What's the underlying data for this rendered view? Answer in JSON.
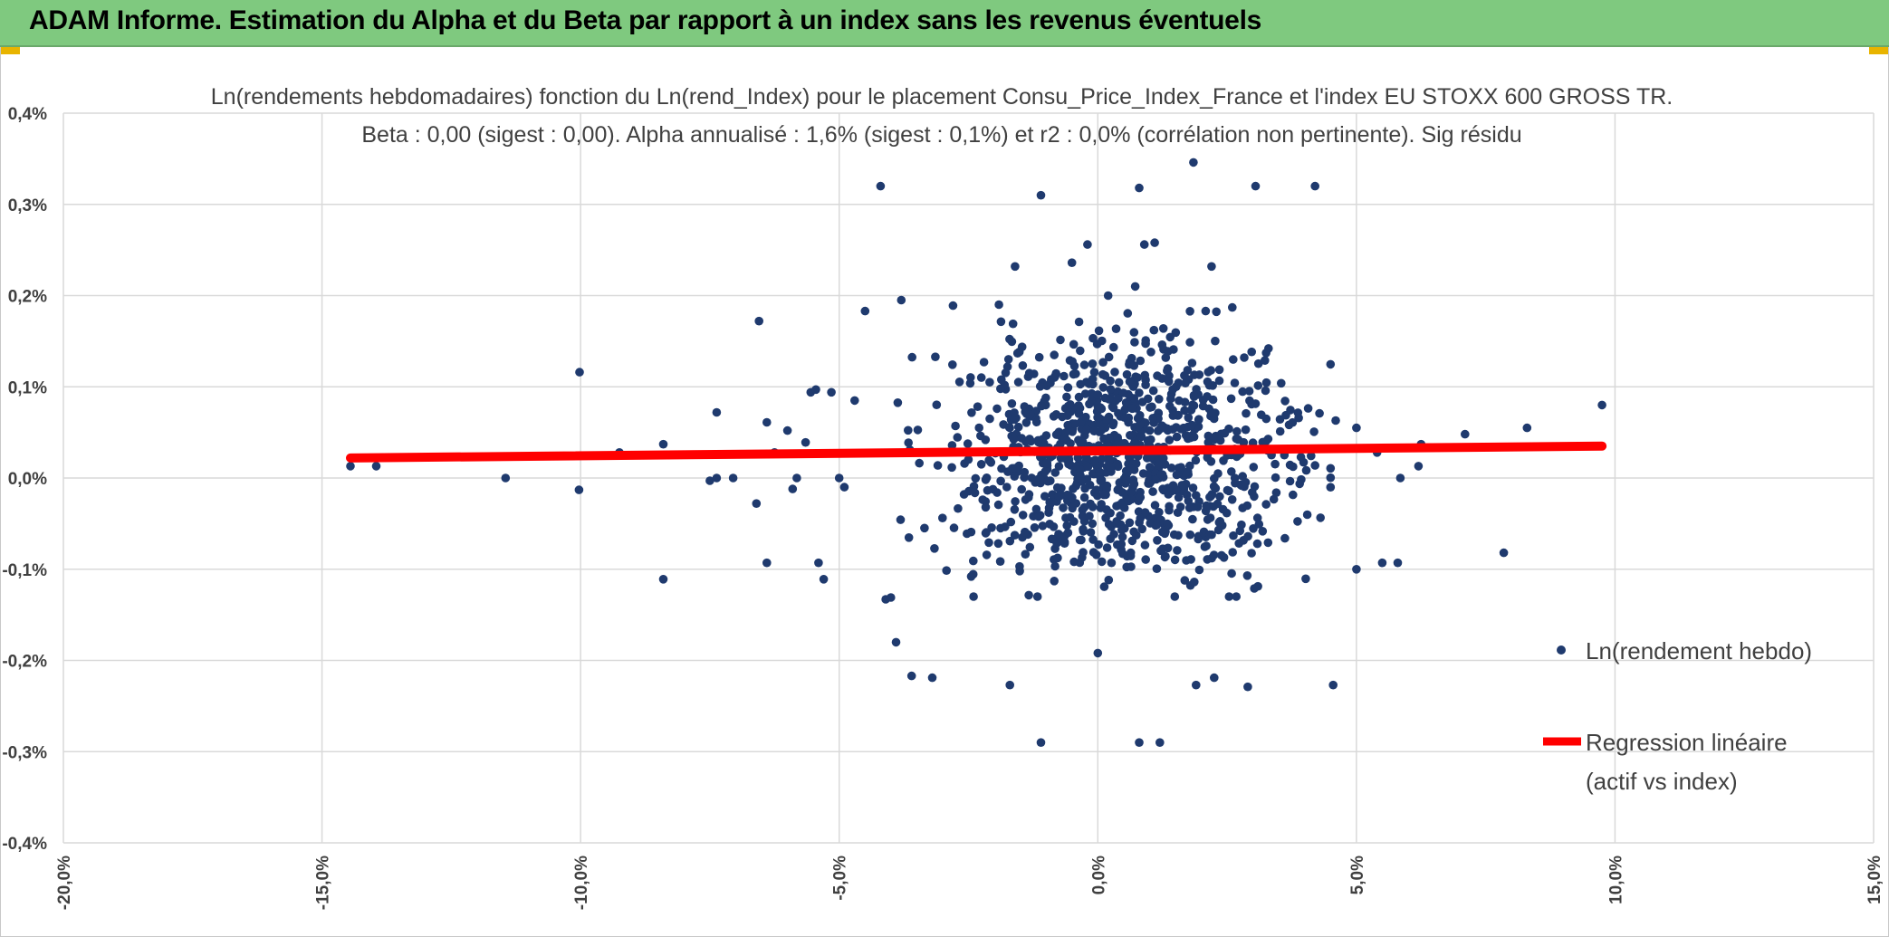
{
  "header": {
    "title": "ADAM Informe. Estimation du Alpha et du Beta par rapport à un index sans les revenus éventuels"
  },
  "colors": {
    "header_bg": "#7fc97f",
    "points": "#1f3a6e",
    "regression": "#ff0000",
    "grid": "#d9d9d9"
  },
  "chart_data": {
    "type": "scatter",
    "title_line1": "Ln(rendements hebdomadaires) fonction du Ln(rend_Index) pour le placement Consu_Price_Index_France et l'index EU STOXX 600 GROSS TR.",
    "title_line2": "Beta : 0,00 (sigest : 0,00). Alpha annualisé : 1,6% (sigest : 0,1%) et r2 : 0,0% (corrélation non pertinente). Sig résidu",
    "xlim": [
      -0.2,
      0.15
    ],
    "ylim": [
      -0.004,
      0.004
    ],
    "x_ticks": [
      "-20,0%",
      "-15,0%",
      "-10,0%",
      "-5,0%",
      "0,0%",
      "5,0%",
      "10,0%",
      "15,0%"
    ],
    "y_ticks": [
      "0,4%",
      "0,3%",
      "0,2%",
      "0,1%",
      "0,0%",
      "-0,1%",
      "-0,2%",
      "-0,3%",
      "-0,4%"
    ],
    "grid": true,
    "legend_position": "right",
    "series": [
      {
        "name": "Ln(rendement hebdo)",
        "kind": "points",
        "points": [
          [
            -0.1445,
            0.00013
          ],
          [
            -0.1395,
            0.00013
          ],
          [
            -0.1145,
            0.0
          ],
          [
            -0.1002,
            0.00116
          ],
          [
            -0.1003,
            -0.00013
          ],
          [
            -0.0925,
            0.00028
          ],
          [
            -0.084,
            0.00037
          ],
          [
            -0.084,
            -0.00111
          ],
          [
            -0.075,
            -3e-05
          ],
          [
            -0.0737,
            0.00072
          ],
          [
            -0.0737,
            0.0
          ],
          [
            -0.0705,
            0.0
          ],
          [
            -0.0655,
            0.00172
          ],
          [
            -0.066,
            -0.00028
          ],
          [
            -0.064,
            0.00061
          ],
          [
            -0.064,
            -0.00093
          ],
          [
            -0.0625,
            0.00028
          ],
          [
            -0.06,
            0.00052
          ],
          [
            -0.059,
            -0.00012
          ],
          [
            -0.0582,
            0.0
          ],
          [
            -0.0565,
            0.00039
          ],
          [
            -0.0555,
            0.00094
          ],
          [
            -0.0545,
            0.00097
          ],
          [
            -0.054,
            -0.00093
          ],
          [
            -0.053,
            -0.00111
          ],
          [
            -0.0515,
            0.00094
          ],
          [
            -0.05,
            0.0
          ],
          [
            -0.049,
            -0.0001
          ],
          [
            -0.047,
            0.00085
          ],
          [
            -0.045,
            0.00183
          ],
          [
            -0.042,
            0.0032
          ],
          [
            -0.041,
            -0.00133
          ],
          [
            -0.04,
            -0.00131
          ],
          [
            -0.039,
            -0.0018
          ],
          [
            -0.038,
            0.00195
          ],
          [
            -0.036,
            -0.00217
          ],
          [
            -0.032,
            -0.00219
          ],
          [
            -0.028,
            0.00189
          ],
          [
            -0.022,
            0.00127
          ],
          [
            -0.017,
            -0.00227
          ],
          [
            -0.016,
            0.00232
          ],
          [
            -0.011,
            0.0031
          ],
          [
            -0.011,
            -0.0029
          ],
          [
            -0.005,
            0.00236
          ],
          [
            -0.002,
            0.00256
          ],
          [
            0.0,
            -0.00192
          ],
          [
            0.002,
            0.002
          ],
          [
            0.008,
            0.00318
          ],
          [
            0.008,
            -0.0029
          ],
          [
            0.009,
            0.00256
          ],
          [
            0.011,
            0.00258
          ],
          [
            0.012,
            -0.0029
          ],
          [
            0.0185,
            0.00346
          ],
          [
            0.019,
            -0.00227
          ],
          [
            0.022,
            0.00232
          ],
          [
            0.0225,
            -0.00219
          ],
          [
            0.026,
            0.00187
          ],
          [
            0.029,
            -0.00229
          ],
          [
            0.0305,
            0.0032
          ],
          [
            0.033,
            0.00142
          ],
          [
            0.042,
            0.0032
          ],
          [
            0.0455,
            -0.00227
          ],
          [
            0.046,
            0.00063
          ],
          [
            0.05,
            0.00055
          ],
          [
            0.05,
            -0.001
          ],
          [
            0.054,
            0.00028
          ],
          [
            0.055,
            -0.00093
          ],
          [
            0.058,
            -0.00093
          ],
          [
            0.0585,
            0.0
          ],
          [
            0.062,
            0.00013
          ],
          [
            0.0625,
            0.00037
          ],
          [
            0.071,
            0.00048
          ],
          [
            0.0785,
            -0.00082
          ],
          [
            0.083,
            0.00055
          ],
          [
            0.0975,
            0.0008
          ]
        ]
      },
      {
        "name": "Regression linéaire (actif vs index)",
        "kind": "line",
        "points": [
          [
            -0.1445,
            0.00022
          ],
          [
            0.0975,
            0.00035
          ]
        ]
      }
    ],
    "cluster_note": "dense cluster of weekly points centred near x≈0.5%, y≈0.02%"
  },
  "legend": {
    "points_label": "Ln(rendement hebdo)",
    "line_label_1": "Regression linéaire",
    "line_label_2": "(actif vs index)"
  }
}
